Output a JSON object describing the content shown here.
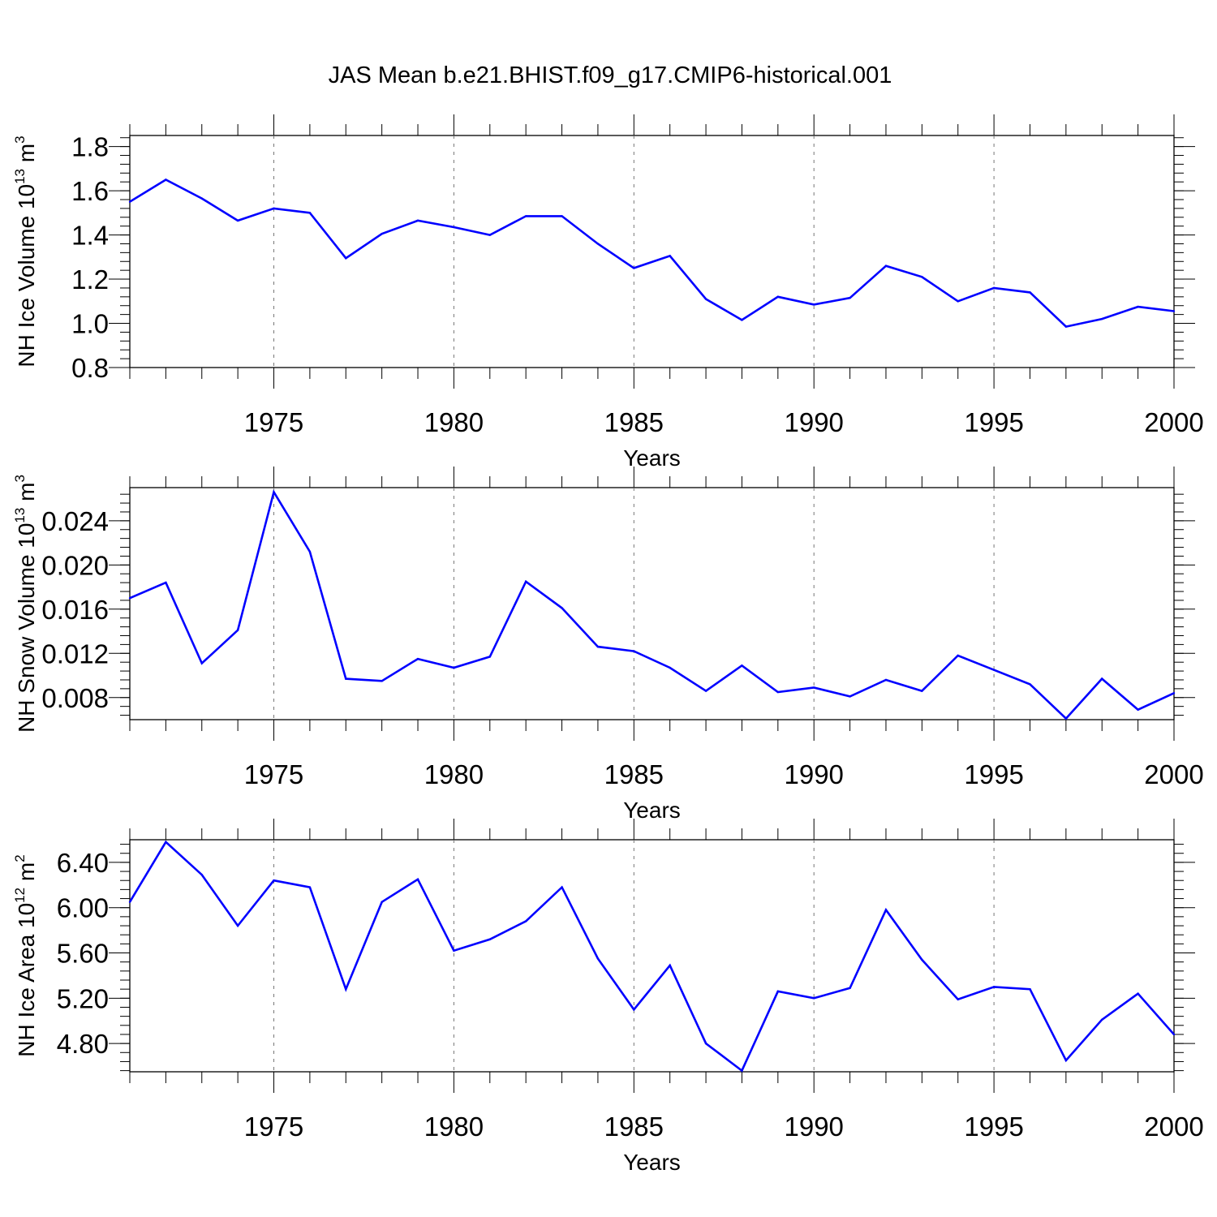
{
  "title": "JAS Mean b.e21.BHIST.f09_g17.CMIP6-historical.001",
  "line_color": "#0000ff",
  "chart_data": [
    {
      "type": "line",
      "title": "",
      "xlabel": "Years",
      "ylabel_base": "NH Ice Volume 10",
      "ylabel_exp": "13",
      "ylabel_unit": " m",
      "ylabel_unit_exp": "3",
      "xlim": [
        1971,
        2000
      ],
      "ylim": [
        0.8,
        1.85
      ],
      "yticks": [
        "0.8",
        "1.0",
        "1.2",
        "1.4",
        "1.6",
        "1.8"
      ],
      "xticks": [
        "1975",
        "1980",
        "1985",
        "1990",
        "1995",
        "2000"
      ],
      "x": [
        1971,
        1972,
        1973,
        1974,
        1975,
        1976,
        1977,
        1978,
        1979,
        1980,
        1981,
        1982,
        1983,
        1984,
        1985,
        1986,
        1987,
        1988,
        1989,
        1990,
        1991,
        1992,
        1993,
        1994,
        1995,
        1996,
        1997,
        1998,
        1999,
        2000
      ],
      "values": [
        1.55,
        1.65,
        1.565,
        1.465,
        1.52,
        1.5,
        1.295,
        1.405,
        1.465,
        1.435,
        1.4,
        1.485,
        1.485,
        1.36,
        1.25,
        1.305,
        1.11,
        1.015,
        1.12,
        1.085,
        1.115,
        1.26,
        1.21,
        1.1,
        1.16,
        1.14,
        0.985,
        1.02,
        1.075,
        1.055
      ]
    },
    {
      "type": "line",
      "title": "",
      "xlabel": "Years",
      "ylabel_base": "NH Snow Volume 10",
      "ylabel_exp": "13",
      "ylabel_unit": " m",
      "ylabel_unit_exp": "3",
      "xlim": [
        1971,
        2000
      ],
      "ylim": [
        0.006,
        0.027
      ],
      "yticks": [
        "0.008",
        "0.012",
        "0.016",
        "0.020",
        "0.024"
      ],
      "xticks": [
        "1975",
        "1980",
        "1985",
        "1990",
        "1995",
        "2000"
      ],
      "x": [
        1971,
        1972,
        1973,
        1974,
        1975,
        1976,
        1977,
        1978,
        1979,
        1980,
        1981,
        1982,
        1983,
        1984,
        1985,
        1986,
        1987,
        1988,
        1989,
        1990,
        1991,
        1992,
        1993,
        1994,
        1995,
        1996,
        1997,
        1998,
        1999,
        2000
      ],
      "values": [
        0.017,
        0.0184,
        0.0111,
        0.0141,
        0.0266,
        0.0212,
        0.0097,
        0.0095,
        0.0115,
        0.0107,
        0.0117,
        0.0185,
        0.0161,
        0.0126,
        0.0122,
        0.0107,
        0.0086,
        0.0109,
        0.0085,
        0.0089,
        0.0081,
        0.0096,
        0.0086,
        0.0118,
        0.0105,
        0.0092,
        0.0061,
        0.0097,
        0.0069,
        0.0084
      ]
    },
    {
      "type": "line",
      "title": "",
      "xlabel": "Years",
      "ylabel_base": "NH Ice Area 10",
      "ylabel_exp": "12",
      "ylabel_unit": " m",
      "ylabel_unit_exp": "2",
      "xlim": [
        1971,
        2000
      ],
      "ylim": [
        4.55,
        6.6
      ],
      "yticks": [
        "4.80",
        "5.20",
        "5.60",
        "6.00",
        "6.40"
      ],
      "xticks": [
        "1975",
        "1980",
        "1985",
        "1990",
        "1995",
        "2000"
      ],
      "x": [
        1971,
        1972,
        1973,
        1974,
        1975,
        1976,
        1977,
        1978,
        1979,
        1980,
        1981,
        1982,
        1983,
        1984,
        1985,
        1986,
        1987,
        1988,
        1989,
        1990,
        1991,
        1992,
        1993,
        1994,
        1995,
        1996,
        1997,
        1998,
        1999,
        2000
      ],
      "values": [
        6.05,
        6.58,
        6.29,
        5.84,
        6.24,
        6.18,
        5.28,
        6.05,
        6.25,
        5.62,
        5.72,
        5.88,
        6.18,
        5.55,
        5.1,
        5.49,
        4.8,
        4.56,
        5.26,
        5.2,
        5.29,
        5.98,
        5.54,
        5.19,
        5.3,
        5.28,
        4.65,
        5.01,
        5.24,
        4.88
      ]
    }
  ]
}
